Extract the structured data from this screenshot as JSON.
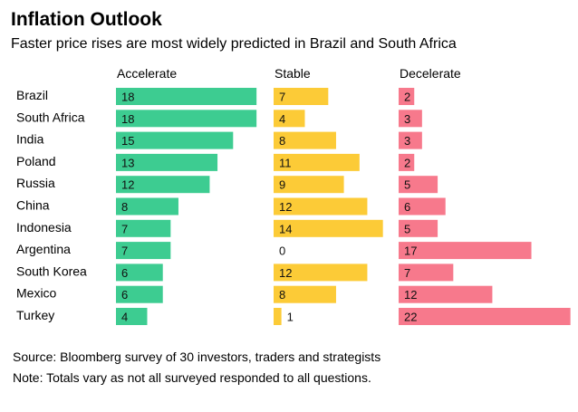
{
  "title": "Inflation Outlook",
  "subtitle": "Faster price rises are most widely predicted in Brazil and South Africa",
  "source": "Source: Bloomberg survey of 30 investors, traders and strategists",
  "note": "Note: Totals vary as not all surveyed responded to all questions.",
  "colors": {
    "Accelerate": "#3dcc91",
    "Stable": "#fccb37",
    "Decelerate": "#f7798c"
  },
  "chart_data": {
    "type": "bar",
    "categories": [
      "Brazil",
      "South Africa",
      "India",
      "Poland",
      "Russia",
      "China",
      "Indonesia",
      "Argentina",
      "South Korea",
      "Mexico",
      "Turkey"
    ],
    "series": [
      {
        "name": "Accelerate",
        "values": [
          18,
          18,
          15,
          13,
          12,
          8,
          7,
          7,
          6,
          6,
          4
        ]
      },
      {
        "name": "Stable",
        "values": [
          7,
          4,
          8,
          11,
          9,
          12,
          14,
          0,
          12,
          8,
          1
        ]
      },
      {
        "name": "Decelerate",
        "values": [
          2,
          3,
          3,
          2,
          5,
          6,
          5,
          17,
          7,
          12,
          22
        ]
      }
    ],
    "title": "Inflation Outlook",
    "subtitle": "Faster price rises are most widely predicted in Brazil and South Africa",
    "grid": false,
    "legend": "column headers"
  }
}
